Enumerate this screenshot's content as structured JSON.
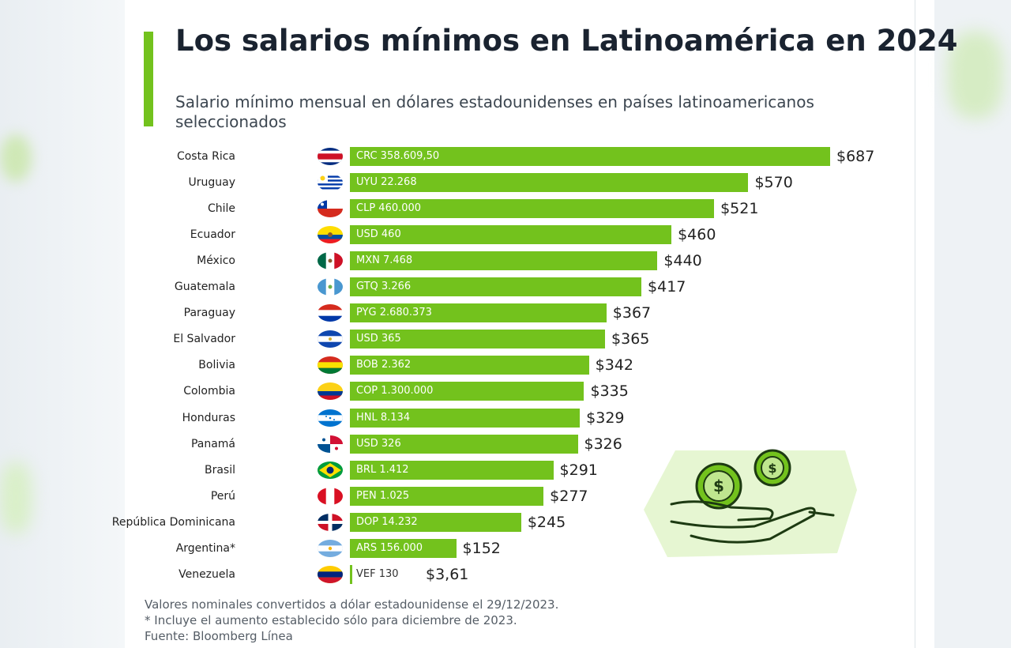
{
  "title": "Los salarios mínimos en Latinoamérica en 2024",
  "subtitle": "Salario mínimo mensual en dólares estadounidenses en países latinoamericanos seleccionados",
  "chart_data": {
    "type": "bar",
    "orientation": "horizontal",
    "categories": [
      "Costa Rica",
      "Uruguay",
      "Chile",
      "Ecuador",
      "México",
      "Guatemala",
      "Paraguay",
      "El Salvador",
      "Bolivia",
      "Colombia",
      "Honduras",
      "Panamá",
      "Brasil",
      "Perú",
      "República Dominicana",
      "Argentina*",
      "Venezuela"
    ],
    "values": [
      687,
      570,
      521,
      460,
      440,
      417,
      367,
      365,
      342,
      335,
      329,
      326,
      291,
      277,
      245,
      152,
      3.61
    ],
    "value_labels": [
      "$687",
      "$570",
      "$521",
      "$460",
      "$440",
      "$417",
      "$367",
      "$365",
      "$342",
      "$335",
      "$329",
      "$326",
      "$291",
      "$277",
      "$245",
      "$152",
      "$3,61"
    ],
    "local_labels": [
      "CRC 358.609,50",
      "UYU 22.268",
      "CLP 460.000",
      "USD 460",
      "MXN 7.468",
      "GTQ 3.266",
      "PYG 2.680.373",
      "USD 365",
      "BOB 2.362",
      "COP 1.300.000",
      "HNL 8.134",
      "USD 326",
      "BRL 1.412",
      "PEN 1.025",
      "DOP 14.232",
      "ARS 156.000",
      "VEF 130"
    ],
    "bar_color": "#73c21d",
    "xlim": [
      0,
      687
    ]
  },
  "footnotes": [
    "Valores nominales convertidos a dólar estadounidense el 29/12/2023.",
    "* Incluye el aumento establecido sólo para diciembre de 2023.",
    "Fuente: Bloomberg Línea"
  ],
  "flags": [
    "costa-rica-flag-icon",
    "uruguay-flag-icon",
    "chile-flag-icon",
    "ecuador-flag-icon",
    "mexico-flag-icon",
    "guatemala-flag-icon",
    "paraguay-flag-icon",
    "el-salvador-flag-icon",
    "bolivia-flag-icon",
    "colombia-flag-icon",
    "honduras-flag-icon",
    "panama-flag-icon",
    "brasil-flag-icon",
    "peru-flag-icon",
    "republica-dominicana-flag-icon",
    "argentina-flag-icon",
    "venezuela-flag-icon"
  ],
  "illustration": "hand-with-coins-icon"
}
